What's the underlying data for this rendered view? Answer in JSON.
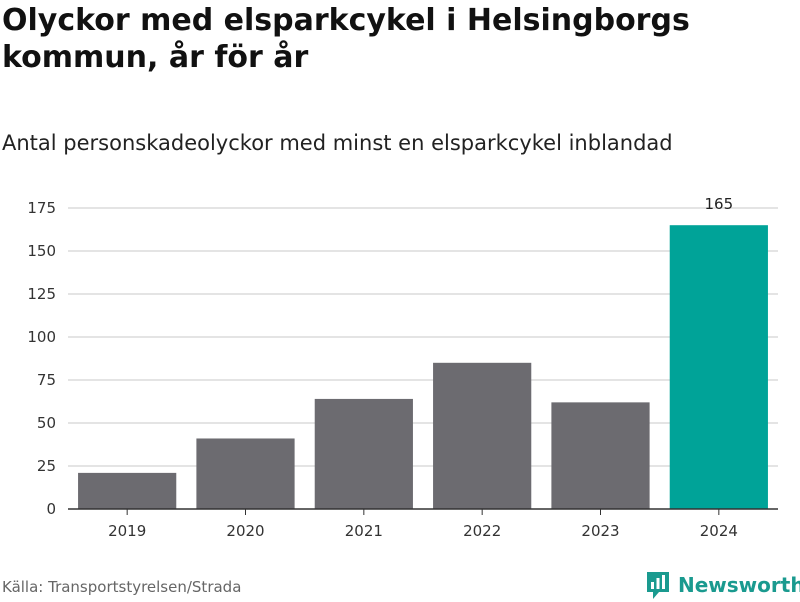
{
  "title": "Olyckor med elsparkcykel i Helsingborgs kommun, år för år",
  "subtitle": "Antal personskadeolyckor med minst en elsparkcykel inblandad",
  "source": "Källa: Transportstyrelsen/Strada",
  "brand": {
    "name": "Newsworthy",
    "icon": "newsworthy-logo-icon",
    "color": "#1a9a8f"
  },
  "chart_data": {
    "type": "bar",
    "categories": [
      "2019",
      "2020",
      "2021",
      "2022",
      "2023",
      "2024"
    ],
    "values": [
      21,
      41,
      64,
      85,
      62,
      165
    ],
    "colors": [
      "#6c6b70",
      "#6c6b70",
      "#6c6b70",
      "#6c6b70",
      "#6c6b70",
      "#00a398"
    ],
    "data_labels": [
      null,
      null,
      null,
      null,
      null,
      "165"
    ],
    "title": "Olyckor med elsparkcykel i Helsingborgs kommun, år för år",
    "subtitle": "Antal personskadeolyckor med minst en elsparkcykel inblandad",
    "xlabel": "",
    "ylabel": "",
    "ylim": [
      0,
      175
    ],
    "yticks": [
      0,
      25,
      50,
      75,
      100,
      125,
      150,
      175
    ],
    "grid": true,
    "legend": "none"
  }
}
